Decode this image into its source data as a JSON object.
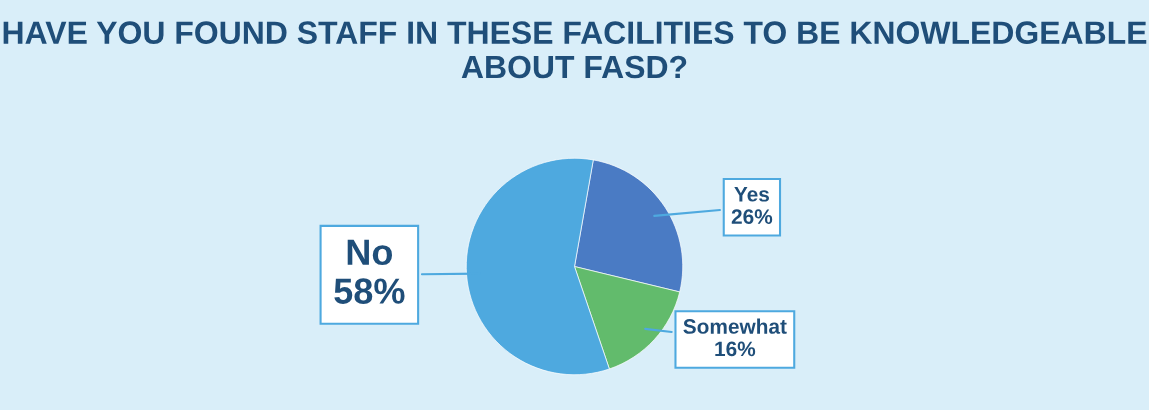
{
  "chart_data": {
    "type": "pie",
    "title": "HAVE YOU FOUND STAFF IN THESE FACILITIES TO BE KNOWLEDGEABLE ABOUT FASD?",
    "categories": [
      "Yes",
      "Somewhat",
      "No"
    ],
    "values": [
      26,
      16,
      58
    ],
    "colors": [
      "#4a7bc4",
      "#62bb6c",
      "#4ea9df"
    ],
    "value_labels": [
      "26%",
      "16%",
      "58%"
    ]
  }
}
